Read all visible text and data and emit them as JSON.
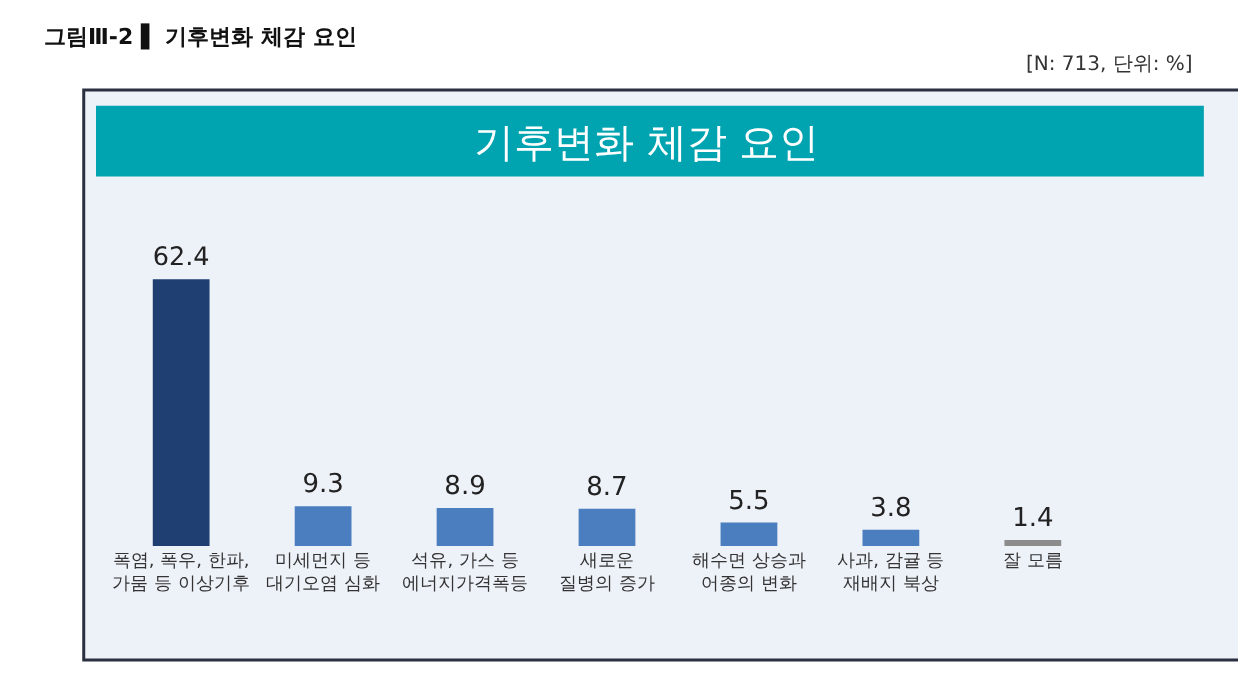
{
  "chart_data": {
    "type": "bar",
    "title": "그림Ⅲ-2 ▌ 기후변화 체감 요인",
    "subtitle": "[N: 713, 단위: %]",
    "annotations": [
      "기후변화 체감 요인"
    ],
    "categories": [
      "폭염, 폭우, 한파,\n가뭄 등 이상기후",
      "미세먼지 등\n대기오염 심화",
      "석유, 가스 등\n에너지가격폭등",
      "새로운\n질병의 증가",
      "해수면 상승과\n어종의 변화",
      "사과, 감귤 등\n재배지 북상",
      "잘 모름"
    ],
    "values": [
      62.4,
      9.3,
      8.9,
      8.7,
      5.5,
      3.8,
      1.4
    ],
    "colors": [
      "#1f3f73",
      "#4a7ebf",
      "#4a7ebf",
      "#4a7ebf",
      "#4a7ebf",
      "#4a7ebf",
      "#8c8c8c"
    ],
    "data_labels": true,
    "grid": false
  }
}
